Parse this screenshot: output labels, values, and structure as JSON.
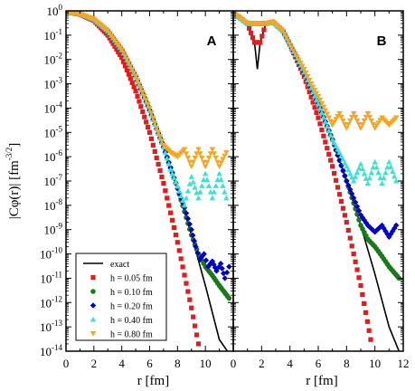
{
  "figure": {
    "ylabel": "|Cφ(r)|  [fm",
    "ylabel_exponent": "-3/2",
    "ylabel_close": "]",
    "panels": [
      "A",
      "B"
    ],
    "legend": [
      {
        "label": "exact",
        "kind": "line",
        "color": "#000000"
      },
      {
        "label": "h = 0.05 fm",
        "kind": "square",
        "color": "#e41a1c"
      },
      {
        "label": "h = 0.10 fm",
        "kind": "circle",
        "color": "#1a7a1a"
      },
      {
        "label": "h = 0.20 fm",
        "kind": "diamond",
        "color": "#0000cc"
      },
      {
        "label": "h = 0.40 fm",
        "kind": "triangle-up",
        "color": "#40e0d0"
      },
      {
        "label": "h = 0.80 fm",
        "kind": "triangle-down",
        "color": "#f5a623"
      }
    ]
  },
  "chart_data": [
    {
      "type": "line",
      "panel": "A",
      "title": "A",
      "xlabel": "r  [fm]",
      "ylabel": "|Cφ(r)|  [fm^-3/2]",
      "xlim": [
        0,
        12
      ],
      "ylim": [
        1e-14,
        1
      ],
      "yscale": "log",
      "xticks": [
        0,
        2,
        4,
        6,
        8,
        10
      ],
      "yticks_exponents": [
        0,
        -1,
        -2,
        -3,
        -4,
        -5,
        -6,
        -7,
        -8,
        -9,
        -10,
        -11,
        -12,
        -13,
        -14
      ],
      "grid": false,
      "legend_position": "bottom-left",
      "series": [
        {
          "name": "exact",
          "style": "line",
          "color": "#000000",
          "x": [
            0,
            1,
            2,
            3,
            4,
            5,
            6,
            7,
            8,
            9,
            10,
            11,
            11.7
          ],
          "y": [
            0.9,
            0.75,
            0.45,
            0.15,
            0.025,
            0.002,
            8e-05,
            2.5e-06,
            5e-08,
            6e-10,
            5e-12,
            3e-14,
            8e-15
          ]
        },
        {
          "name": "h = 0.05 fm",
          "style": "square",
          "color": "#e41a1c",
          "x": [
            0,
            1,
            2,
            3,
            4,
            5,
            6,
            7,
            8,
            9,
            9.5
          ],
          "y": [
            0.9,
            0.72,
            0.4,
            0.1,
            0.012,
            0.0005,
            1e-05,
            8e-08,
            3e-10,
            6e-13,
            2e-14
          ]
        },
        {
          "name": "h = 0.10 fm",
          "style": "circle",
          "color": "#1a7a1a",
          "x": [
            0,
            1,
            2,
            3,
            4,
            5,
            6,
            7,
            8,
            9,
            9.5,
            10,
            10.5,
            11,
            11.7
          ],
          "y": [
            0.9,
            0.75,
            0.45,
            0.15,
            0.025,
            0.002,
            8e-05,
            2.5e-06,
            5e-08,
            6e-10,
            1e-10,
            3e-11,
            1.3e-11,
            5e-12,
            1.5e-12
          ]
        },
        {
          "name": "h = 0.20 fm",
          "style": "diamond",
          "color": "#0000cc",
          "x": [
            0,
            1,
            2,
            3,
            4,
            5,
            6,
            7,
            8,
            8.5,
            9,
            9.3,
            9.6,
            9.9,
            10.2,
            10.5,
            10.8,
            11.1,
            11.4,
            11.7
          ],
          "y": [
            0.9,
            0.75,
            0.45,
            0.15,
            0.025,
            0.002,
            8e-05,
            2.5e-06,
            5e-08,
            8e-09,
            1e-09,
            2e-10,
            6e-11,
            1e-10,
            3e-11,
            5e-11,
            2e-11,
            4e-11,
            1e-11,
            3e-11
          ]
        },
        {
          "name": "h = 0.40 fm",
          "style": "triangle-up",
          "color": "#40e0d0",
          "x": [
            0,
            1,
            2,
            3,
            4,
            5,
            6,
            7,
            7.5,
            8,
            8.5,
            9,
            9.5,
            10,
            10.5,
            11,
            11.5
          ],
          "y": [
            0.9,
            0.75,
            0.45,
            0.15,
            0.025,
            0.002,
            8e-05,
            2.5e-06,
            3e-07,
            6e-08,
            1e-08,
            1.5e-07,
            2e-08,
            2e-07,
            2e-08,
            2e-07,
            2e-08
          ]
        },
        {
          "name": "h = 0.80 fm",
          "style": "triangle-down",
          "color": "#f5a623",
          "x": [
            0,
            1,
            2,
            3,
            4,
            5,
            6,
            6.5,
            7,
            7.5,
            8,
            8.5,
            9,
            9.5,
            10,
            10.5,
            11,
            11.5
          ],
          "y": [
            0.9,
            0.75,
            0.45,
            0.15,
            0.025,
            0.002,
            0.0001,
            1.5e-05,
            3e-06,
            1.5e-06,
            1e-06,
            2e-06,
            4e-07,
            2e-06,
            4e-07,
            2e-06,
            4e-07,
            1.5e-06
          ]
        }
      ]
    },
    {
      "type": "line",
      "panel": "B",
      "title": "B",
      "xlabel": "r  [fm]",
      "ylabel": "",
      "xlim": [
        0,
        12
      ],
      "ylim": [
        1e-14,
        1
      ],
      "yscale": "log",
      "xticks": [
        0,
        2,
        4,
        6,
        8,
        10,
        12
      ],
      "grid": false,
      "series": [
        {
          "name": "exact",
          "style": "line",
          "color": "#000000",
          "x": [
            0,
            0.5,
            1,
            1.5,
            1.7,
            1.9,
            2.3,
            2.8,
            3.5,
            4,
            5,
            6,
            7,
            8,
            9,
            10,
            11,
            11.7
          ],
          "y": [
            0.8,
            0.5,
            0.3,
            0.05,
            0.004,
            0.05,
            0.3,
            0.35,
            0.15,
            0.04,
            0.003,
            0.00015,
            5e-06,
            1e-07,
            1.5e-09,
            1.5e-11,
            1e-13,
            1e-14
          ]
        },
        {
          "name": "h = 0.05 fm",
          "style": "square",
          "color": "#e41a1c",
          "x": [
            0,
            0.5,
            1,
            1.5,
            1.9,
            2.3,
            2.8,
            3.5,
            4,
            5,
            6,
            7,
            8,
            9,
            9.7
          ],
          "y": [
            0.8,
            0.5,
            0.3,
            0.05,
            0.05,
            0.3,
            0.35,
            0.15,
            0.04,
            0.002,
            4e-05,
            4e-07,
            2e-09,
            5e-12,
            3e-14
          ]
        },
        {
          "name": "h = 0.10 fm",
          "style": "circle",
          "color": "#1a7a1a",
          "x": [
            0,
            1,
            2.3,
            2.8,
            3.5,
            4,
            5,
            6,
            7,
            8,
            9,
            9.5,
            10,
            10.5,
            11,
            11.7
          ],
          "y": [
            0.8,
            0.3,
            0.3,
            0.35,
            0.15,
            0.04,
            0.003,
            0.00015,
            5e-06,
            1e-07,
            1.5e-09,
            4e-10,
            2e-10,
            8e-11,
            3e-11,
            1e-11
          ]
        },
        {
          "name": "h = 0.20 fm",
          "style": "diamond",
          "color": "#0000cc",
          "x": [
            0,
            1,
            2.3,
            2.8,
            3.5,
            4,
            5,
            6,
            7,
            8,
            8.5,
            9,
            9.5,
            10,
            10.5,
            11,
            11.5
          ],
          "y": [
            0.8,
            0.3,
            0.3,
            0.35,
            0.15,
            0.04,
            0.003,
            0.00015,
            5e-06,
            1e-07,
            2e-08,
            4e-09,
            1.5e-09,
            8e-10,
            1.5e-09,
            5e-10,
            1.5e-09
          ]
        },
        {
          "name": "h = 0.40 fm",
          "style": "triangle-up",
          "color": "#40e0d0",
          "x": [
            0,
            1,
            2.3,
            2.8,
            3.5,
            4,
            5,
            6,
            7,
            7.5,
            8,
            8.5,
            9,
            9.5,
            10,
            10.5,
            11,
            11.5
          ],
          "y": [
            0.8,
            0.3,
            0.3,
            0.35,
            0.15,
            0.04,
            0.003,
            0.00015,
            5e-06,
            1.5e-06,
            4e-07,
            1e-07,
            5e-07,
            8e-08,
            6e-07,
            8e-08,
            6e-07,
            1e-07
          ]
        },
        {
          "name": "h = 0.80 fm",
          "style": "triangle-down",
          "color": "#f5a623",
          "x": [
            0,
            1,
            2.3,
            2.8,
            3.5,
            4,
            5,
            5.5,
            6,
            6.5,
            7,
            7.5,
            8,
            8.5,
            9,
            9.5,
            10,
            10.5,
            11,
            11.5
          ],
          "y": [
            0.8,
            0.3,
            0.3,
            0.35,
            0.15,
            0.04,
            0.004,
            0.001,
            0.0003,
            8e-05,
            2e-05,
            6e-05,
            1.5e-05,
            6e-05,
            1.5e-05,
            6e-05,
            1.5e-05,
            4e-05,
            2e-05,
            4e-05
          ]
        }
      ]
    }
  ]
}
